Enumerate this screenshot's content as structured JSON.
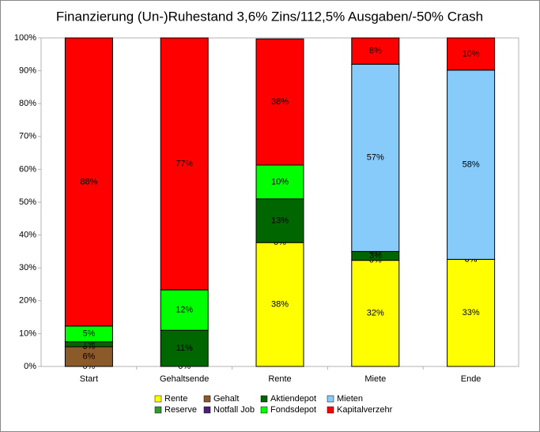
{
  "chart_data": {
    "type": "stacked_bar",
    "title": "Finanzierung (Un-)Ruhestand 3,6% Zins/112,5% Ausgaben/-50% Crash",
    "categories": [
      "Start",
      "Gehaltsende",
      "Rente",
      "Miete",
      "Ende"
    ],
    "ylim": [
      0,
      100
    ],
    "yticks": [
      {
        "value": 0,
        "label": "0%"
      },
      {
        "value": 10,
        "label": "10%"
      },
      {
        "value": 20,
        "label": "20%"
      },
      {
        "value": 30,
        "label": "30%"
      },
      {
        "value": 40,
        "label": "40%"
      },
      {
        "value": 50,
        "label": "50%"
      },
      {
        "value": 60,
        "label": "60%"
      },
      {
        "value": 70,
        "label": "70%"
      },
      {
        "value": 80,
        "label": "80%"
      },
      {
        "value": 90,
        "label": "90%"
      },
      {
        "value": 100,
        "label": "100%"
      }
    ],
    "grid": false,
    "series": [
      {
        "name": "Rente",
        "color": "#ffff00",
        "values": [
          0,
          0,
          37.7,
          32.3,
          32.6
        ],
        "value_labels": [
          "0%",
          "0%",
          "38%",
          "32%",
          "33%"
        ]
      },
      {
        "name": "Reserve",
        "color": "#339933",
        "values": [
          0,
          0,
          0,
          0,
          0
        ],
        "value_labels": [
          null,
          null,
          "0%",
          "0%",
          "0%"
        ]
      },
      {
        "name": "Gehalt",
        "color": "#8b5a2b",
        "values": [
          6,
          0,
          0,
          0,
          0
        ],
        "value_labels": [
          "6%",
          null,
          null,
          null,
          null
        ]
      },
      {
        "name": "Notfall Job",
        "color": "#4b1f7a",
        "values": [
          0,
          0,
          0,
          0,
          0
        ],
        "value_labels": [
          "0%",
          null,
          null,
          null,
          null
        ]
      },
      {
        "name": "Aktiendepot",
        "color": "#006600",
        "values": [
          1.5,
          11,
          13.3,
          2.7,
          0
        ],
        "value_labels": [
          "1%",
          "11%",
          "13%",
          "3%",
          null
        ]
      },
      {
        "name": "Fondsdepot",
        "color": "#00ff00",
        "values": [
          4.8,
          12.3,
          10.3,
          0,
          0
        ],
        "value_labels": [
          "5%",
          "12%",
          "10%",
          "0%",
          "0%"
        ]
      },
      {
        "name": "Mieten",
        "color": "#87cbfa",
        "values": [
          0,
          0,
          0,
          57,
          57.6
        ],
        "value_labels": [
          null,
          null,
          null,
          "57%",
          "58%"
        ]
      },
      {
        "name": "Kapitalverzehr",
        "color": "#ff0000",
        "values": [
          87.7,
          76.7,
          38.4,
          8,
          9.8
        ],
        "value_labels": [
          "88%",
          "77%",
          "38%",
          "8%",
          "10%"
        ]
      }
    ]
  }
}
